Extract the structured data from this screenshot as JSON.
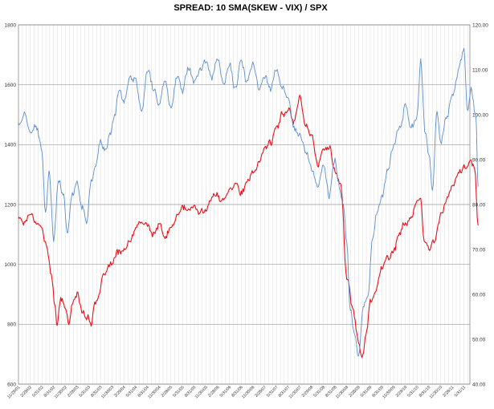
{
  "chart_data": {
    "type": "line",
    "title": "SPREAD: 10 SMA(SKEW - VIX) / SPX",
    "xlabel": "",
    "ylabel": "",
    "y_left": {
      "min": 600,
      "max": 1800,
      "ticks": [
        "600",
        "800",
        "1000",
        "1200",
        "1400",
        "1600",
        "1800"
      ]
    },
    "y_right": {
      "min": 40,
      "max": 120,
      "ticks": [
        "40.00",
        "50.00",
        "60.00",
        "70.00",
        "80.00",
        "90.00",
        "100.00",
        "110.00",
        "120.00"
      ]
    },
    "grid": true,
    "legend": "none",
    "x_tick_labels": [
      "11/29/01",
      "2/28/02",
      "5/31/02",
      "8/31/02",
      "11/30/02",
      "2/28/03",
      "5/31/03",
      "8/31/03",
      "11/30/03",
      "2/29/04",
      "5/31/04",
      "8/31/04",
      "11/30/04",
      "2/28/05",
      "5/31/05",
      "8/31/05",
      "11/30/05",
      "2/28/06",
      "5/31/06",
      "8/31/06",
      "11/30/06",
      "2/28/07",
      "5/31/07",
      "8/31/07",
      "11/30/07",
      "2/29/08",
      "5/31/08",
      "8/31/08",
      "11/30/08",
      "2/28/09",
      "5/31/09",
      "8/31/09",
      "11/30/09",
      "2/28/10",
      "5/31/10",
      "8/31/10",
      "11/30/10",
      "2/28/11",
      "5/31/11"
    ],
    "series": [
      {
        "name": "",
        "axis": "left",
        "color": "#e8101a",
        "points": [
          [
            0,
            1160
          ],
          [
            0.5,
            1140
          ],
          [
            1,
            1175
          ],
          [
            1.5,
            1145
          ],
          [
            2,
            1120
          ],
          [
            2.4,
            1060
          ],
          [
            2.8,
            960
          ],
          [
            3.1,
            870
          ],
          [
            3.3,
            800
          ],
          [
            3.6,
            880
          ],
          [
            4,
            860
          ],
          [
            4.3,
            790
          ],
          [
            4.6,
            880
          ],
          [
            5,
            900
          ],
          [
            5.4,
            850
          ],
          [
            5.8,
            830
          ],
          [
            6.2,
            800
          ],
          [
            6.5,
            880
          ],
          [
            6.8,
            880
          ],
          [
            7.2,
            950
          ],
          [
            7.6,
            990
          ],
          [
            8,
            1000
          ],
          [
            8.5,
            1040
          ],
          [
            9,
            1050
          ],
          [
            9.5,
            1070
          ],
          [
            10,
            1120
          ],
          [
            10.5,
            1140
          ],
          [
            11,
            1130
          ],
          [
            11.5,
            1100
          ],
          [
            12,
            1130
          ],
          [
            12.5,
            1090
          ],
          [
            13,
            1120
          ],
          [
            13.5,
            1160
          ],
          [
            14,
            1190
          ],
          [
            14.5,
            1180
          ],
          [
            15,
            1190
          ],
          [
            15.5,
            1170
          ],
          [
            16,
            1190
          ],
          [
            16.5,
            1220
          ],
          [
            17,
            1230
          ],
          [
            17.5,
            1210
          ],
          [
            18,
            1260
          ],
          [
            18.5,
            1270
          ],
          [
            19,
            1240
          ],
          [
            19.5,
            1270
          ],
          [
            20,
            1300
          ],
          [
            20.5,
            1340
          ],
          [
            21,
            1390
          ],
          [
            21.5,
            1410
          ],
          [
            22,
            1450
          ],
          [
            22.5,
            1500
          ],
          [
            23,
            1520
          ],
          [
            23.5,
            1480
          ],
          [
            24,
            1560
          ],
          [
            24.5,
            1470
          ],
          [
            25,
            1430
          ],
          [
            25.5,
            1330
          ],
          [
            26,
            1380
          ],
          [
            26.5,
            1400
          ],
          [
            27,
            1310
          ],
          [
            27.5,
            1260
          ],
          [
            28,
            960
          ],
          [
            28.5,
            850
          ],
          [
            29,
            740
          ],
          [
            29.3,
            690
          ],
          [
            29.7,
            780
          ],
          [
            30,
            880
          ],
          [
            30.5,
            920
          ],
          [
            31,
            990
          ],
          [
            31.5,
            1020
          ],
          [
            32,
            1050
          ],
          [
            32.5,
            1100
          ],
          [
            33,
            1140
          ],
          [
            33.5,
            1160
          ],
          [
            34,
            1200
          ],
          [
            34.3,
            1210
          ],
          [
            34.6,
            1080
          ],
          [
            35,
            1050
          ],
          [
            35.5,
            1080
          ],
          [
            36,
            1170
          ],
          [
            36.5,
            1210
          ],
          [
            37,
            1260
          ],
          [
            37.5,
            1300
          ],
          [
            38,
            1320
          ],
          [
            38.5,
            1340
          ],
          [
            38.9,
            1320
          ],
          [
            39.2,
            1130
          ]
        ]
      },
      {
        "name": "",
        "axis": "right",
        "color": "#5b8ecc",
        "points": [
          [
            0,
            98
          ],
          [
            0.5,
            100
          ],
          [
            1,
            96
          ],
          [
            1.5,
            97
          ],
          [
            2,
            92
          ],
          [
            2.3,
            78
          ],
          [
            2.6,
            87
          ],
          [
            3,
            72
          ],
          [
            3.4,
            85
          ],
          [
            3.8,
            83
          ],
          [
            4.2,
            74
          ],
          [
            4.6,
            83
          ],
          [
            5,
            85
          ],
          [
            5.4,
            80
          ],
          [
            5.8,
            76
          ],
          [
            6.2,
            85
          ],
          [
            6.6,
            89
          ],
          [
            7,
            94
          ],
          [
            7.4,
            92
          ],
          [
            7.8,
            95
          ],
          [
            8.2,
            100
          ],
          [
            8.6,
            106
          ],
          [
            9,
            103
          ],
          [
            9.5,
            108
          ],
          [
            10,
            108
          ],
          [
            10.5,
            100
          ],
          [
            11,
            110
          ],
          [
            11.5,
            106
          ],
          [
            12,
            102
          ],
          [
            12.5,
            108
          ],
          [
            13,
            101
          ],
          [
            13.5,
            109
          ],
          [
            14,
            106
          ],
          [
            14.5,
            111
          ],
          [
            15,
            108
          ],
          [
            15.5,
            110
          ],
          [
            16,
            112
          ],
          [
            16.5,
            108
          ],
          [
            17,
            113
          ],
          [
            17.5,
            107
          ],
          [
            18,
            111
          ],
          [
            18.5,
            106
          ],
          [
            19,
            112
          ],
          [
            19.5,
            107
          ],
          [
            20,
            111
          ],
          [
            20.5,
            106
          ],
          [
            21,
            109
          ],
          [
            21.5,
            106
          ],
          [
            22,
            110
          ],
          [
            22.5,
            106
          ],
          [
            23,
            103
          ],
          [
            23.5,
            97
          ],
          [
            24,
            95
          ],
          [
            24.5,
            92
          ],
          [
            25,
            88
          ],
          [
            25.5,
            84
          ],
          [
            26,
            89
          ],
          [
            26.5,
            82
          ],
          [
            27,
            90
          ],
          [
            27.3,
            85
          ],
          [
            27.7,
            80
          ],
          [
            28,
            72
          ],
          [
            28.3,
            56
          ],
          [
            28.7,
            51
          ],
          [
            29,
            46
          ],
          [
            29.4,
            57
          ],
          [
            29.8,
            60
          ],
          [
            30.2,
            73
          ],
          [
            30.6,
            78
          ],
          [
            31,
            82
          ],
          [
            31.5,
            88
          ],
          [
            32,
            93
          ],
          [
            32.5,
            97
          ],
          [
            33,
            102
          ],
          [
            33.5,
            97
          ],
          [
            34,
            100
          ],
          [
            34.3,
            112
          ],
          [
            34.7,
            96
          ],
          [
            35,
            91
          ],
          [
            35.3,
            84
          ],
          [
            35.7,
            101
          ],
          [
            36,
            94
          ],
          [
            36.5,
            99
          ],
          [
            37,
            104
          ],
          [
            37.5,
            110
          ],
          [
            38,
            114
          ],
          [
            38.3,
            101
          ],
          [
            38.6,
            105
          ],
          [
            39,
            100
          ],
          [
            39.2,
            84
          ]
        ]
      }
    ]
  }
}
